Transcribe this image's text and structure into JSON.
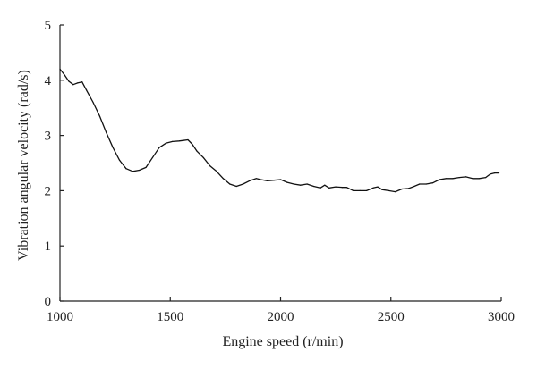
{
  "chart_data": {
    "type": "line",
    "title": "",
    "xlabel": "Engine speed (r/min)",
    "ylabel": "Vibration angular velocity (rad/s)",
    "xlim": [
      1000,
      3000
    ],
    "ylim": [
      0,
      5
    ],
    "xticks": [
      1000,
      1500,
      2000,
      2500,
      3000
    ],
    "yticks": [
      0,
      1,
      2,
      3,
      4,
      5
    ],
    "grid": false,
    "legend": "none",
    "line_color": "#111111",
    "series": [
      {
        "x": [
          1000,
          1020,
          1040,
          1060,
          1080,
          1100,
          1120,
          1150,
          1180,
          1210,
          1240,
          1270,
          1300,
          1330,
          1360,
          1390,
          1420,
          1450,
          1480,
          1510,
          1540,
          1560,
          1580,
          1600,
          1620,
          1650,
          1680,
          1710,
          1740,
          1770,
          1800,
          1830,
          1860,
          1890,
          1910,
          1940,
          1970,
          2000,
          2030,
          2060,
          2090,
          2120,
          2150,
          2180,
          2200,
          2220,
          2250,
          2280,
          2300,
          2330,
          2360,
          2390,
          2420,
          2440,
          2460,
          2490,
          2520,
          2550,
          2580,
          2600,
          2630,
          2660,
          2690,
          2720,
          2750,
          2780,
          2810,
          2840,
          2870,
          2900,
          2930,
          2950,
          2970,
          2990
        ],
        "y": [
          4.2,
          4.1,
          3.98,
          3.92,
          3.95,
          3.97,
          3.82,
          3.6,
          3.35,
          3.05,
          2.78,
          2.55,
          2.4,
          2.35,
          2.37,
          2.42,
          2.6,
          2.78,
          2.86,
          2.89,
          2.9,
          2.91,
          2.92,
          2.84,
          2.72,
          2.6,
          2.45,
          2.35,
          2.22,
          2.12,
          2.08,
          2.12,
          2.18,
          2.22,
          2.2,
          2.18,
          2.19,
          2.2,
          2.15,
          2.12,
          2.1,
          2.12,
          2.08,
          2.05,
          2.1,
          2.05,
          2.07,
          2.06,
          2.06,
          2.0,
          2.0,
          2.0,
          2.05,
          2.07,
          2.02,
          2.0,
          1.98,
          2.03,
          2.04,
          2.07,
          2.12,
          2.12,
          2.14,
          2.2,
          2.22,
          2.22,
          2.24,
          2.25,
          2.22,
          2.22,
          2.24,
          2.3,
          2.32,
          2.32
        ]
      }
    ]
  }
}
